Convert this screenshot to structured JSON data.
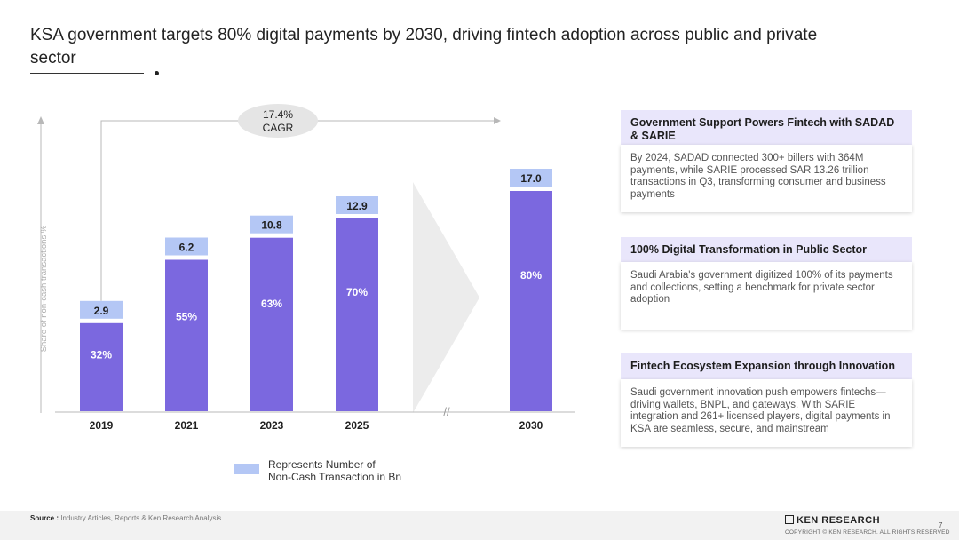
{
  "slide": {
    "title": "KSA government targets 80% digital payments by 2030, driving fintech adoption across public and private sector",
    "page_number": "7"
  },
  "chart_data": {
    "type": "bar",
    "ylabel": "Share of non-cash transactions %",
    "categories": [
      "2019",
      "2021",
      "2023",
      "2025",
      "2030"
    ],
    "values": [
      32,
      55,
      63,
      70,
      80
    ],
    "value_labels": [
      "32%",
      "55%",
      "63%",
      "70%",
      "80%"
    ],
    "secondary_values": [
      2.9,
      6.2,
      10.8,
      12.9,
      17.0
    ],
    "secondary_labels": [
      "2.9",
      "6.2",
      "10.8",
      "12.9",
      "17.0"
    ],
    "secondary_name": "Represents Number of Non-Cash Transaction in Bn",
    "cagr_label_line1": "17.4%",
    "cagr_label_line2": "CAGR",
    "axis_break_symbol": "//",
    "ylim": [
      0,
      100
    ],
    "colors": {
      "bar": "#7b68df",
      "secondary_box": "#b4c7f5",
      "axis": "#b8b8b8",
      "arrow": "#ececec",
      "cagr": "#e5e5e5"
    }
  },
  "legend": {
    "line1": "Represents Number of",
    "line2": "Non-Cash Transaction in Bn"
  },
  "panels": [
    {
      "heading": "Government Support Powers Fintech with SADAD & SARIE",
      "body": "By 2024, SADAD connected 300+ billers with 364M payments, while SARIE processed SAR 13.26 trillion transactions in Q3, transforming consumer and business payments"
    },
    {
      "heading": "100% Digital Transformation in Public Sector",
      "body": "Saudi Arabia's government digitized 100% of its payments and collections, setting a benchmark for private sector adoption"
    },
    {
      "heading": "Fintech Ecosystem Expansion through Innovation",
      "body": "Saudi government innovation push empowers fintechs—driving wallets, BNPL, and gateways. With SARIE integration and 261+ licensed players, digital payments in KSA are seamless, secure, and mainstream"
    }
  ],
  "footer": {
    "source_label": "Source :",
    "source_text": "Industry Articles, Reports & Ken Research Analysis",
    "brand": "KEN RESEARCH",
    "copyright": "COPYRIGHT © KEN RESEARCH. ALL RIGHTS RESERVED"
  }
}
